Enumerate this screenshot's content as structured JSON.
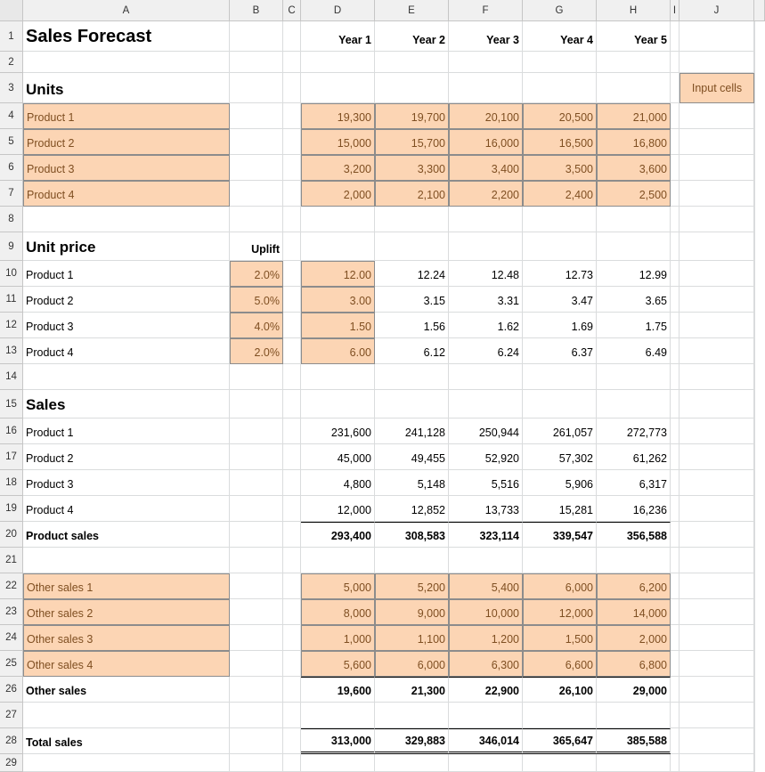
{
  "column_headers": [
    "A",
    "B",
    "C",
    "D",
    "E",
    "F",
    "G",
    "H",
    "I",
    "J"
  ],
  "row_headers": [
    "1",
    "2",
    "3",
    "4",
    "5",
    "6",
    "7",
    "8",
    "9",
    "10",
    "11",
    "12",
    "13",
    "14",
    "15",
    "16",
    "17",
    "18",
    "19",
    "20",
    "21",
    "22",
    "23",
    "24",
    "25",
    "26",
    "27",
    "28",
    "29"
  ],
  "title": "Sales Forecast",
  "years": [
    "Year 1",
    "Year 2",
    "Year 3",
    "Year 4",
    "Year 5"
  ],
  "legend_label": "Input cells",
  "units": {
    "heading": "Units",
    "rows": [
      {
        "label": "Product 1",
        "values": [
          "19,300",
          "19,700",
          "20,100",
          "20,500",
          "21,000"
        ]
      },
      {
        "label": "Product 2",
        "values": [
          "15,000",
          "15,700",
          "16,000",
          "16,500",
          "16,800"
        ]
      },
      {
        "label": "Product 3",
        "values": [
          "3,200",
          "3,300",
          "3,400",
          "3,500",
          "3,600"
        ]
      },
      {
        "label": "Product 4",
        "values": [
          "2,000",
          "2,100",
          "2,200",
          "2,400",
          "2,500"
        ]
      }
    ]
  },
  "unit_price": {
    "heading": "Unit price",
    "uplift_header": "Uplift",
    "rows": [
      {
        "label": "Product 1",
        "uplift": "2.0%",
        "values": [
          "12.00",
          "12.24",
          "12.48",
          "12.73",
          "12.99"
        ]
      },
      {
        "label": "Product 2",
        "uplift": "5.0%",
        "values": [
          "3.00",
          "3.15",
          "3.31",
          "3.47",
          "3.65"
        ]
      },
      {
        "label": "Product 3",
        "uplift": "4.0%",
        "values": [
          "1.50",
          "1.56",
          "1.62",
          "1.69",
          "1.75"
        ]
      },
      {
        "label": "Product 4",
        "uplift": "2.0%",
        "values": [
          "6.00",
          "6.12",
          "6.24",
          "6.37",
          "6.49"
        ]
      }
    ]
  },
  "sales": {
    "heading": "Sales",
    "rows": [
      {
        "label": "Product 1",
        "values": [
          "231,600",
          "241,128",
          "250,944",
          "261,057",
          "272,773"
        ]
      },
      {
        "label": "Product 2",
        "values": [
          "45,000",
          "49,455",
          "52,920",
          "57,302",
          "61,262"
        ]
      },
      {
        "label": "Product 3",
        "values": [
          "4,800",
          "5,148",
          "5,516",
          "5,906",
          "6,317"
        ]
      },
      {
        "label": "Product 4",
        "values": [
          "12,000",
          "12,852",
          "13,733",
          "15,281",
          "16,236"
        ]
      }
    ],
    "product_total": {
      "label": "Product sales",
      "values": [
        "293,400",
        "308,583",
        "323,114",
        "339,547",
        "356,588"
      ]
    },
    "other_rows": [
      {
        "label": "Other sales 1",
        "values": [
          "5,000",
          "5,200",
          "5,400",
          "6,000",
          "6,200"
        ]
      },
      {
        "label": "Other sales 2",
        "values": [
          "8,000",
          "9,000",
          "10,000",
          "12,000",
          "14,000"
        ]
      },
      {
        "label": "Other sales 3",
        "values": [
          "1,000",
          "1,100",
          "1,200",
          "1,500",
          "2,000"
        ]
      },
      {
        "label": "Other sales 4",
        "values": [
          "5,600",
          "6,000",
          "6,300",
          "6,600",
          "6,800"
        ]
      }
    ],
    "other_total": {
      "label": "Other sales",
      "values": [
        "19,600",
        "21,300",
        "22,900",
        "26,100",
        "29,000"
      ]
    },
    "grand_total": {
      "label": "Total sales",
      "values": [
        "313,000",
        "329,883",
        "346,014",
        "365,647",
        "385,588"
      ]
    }
  }
}
